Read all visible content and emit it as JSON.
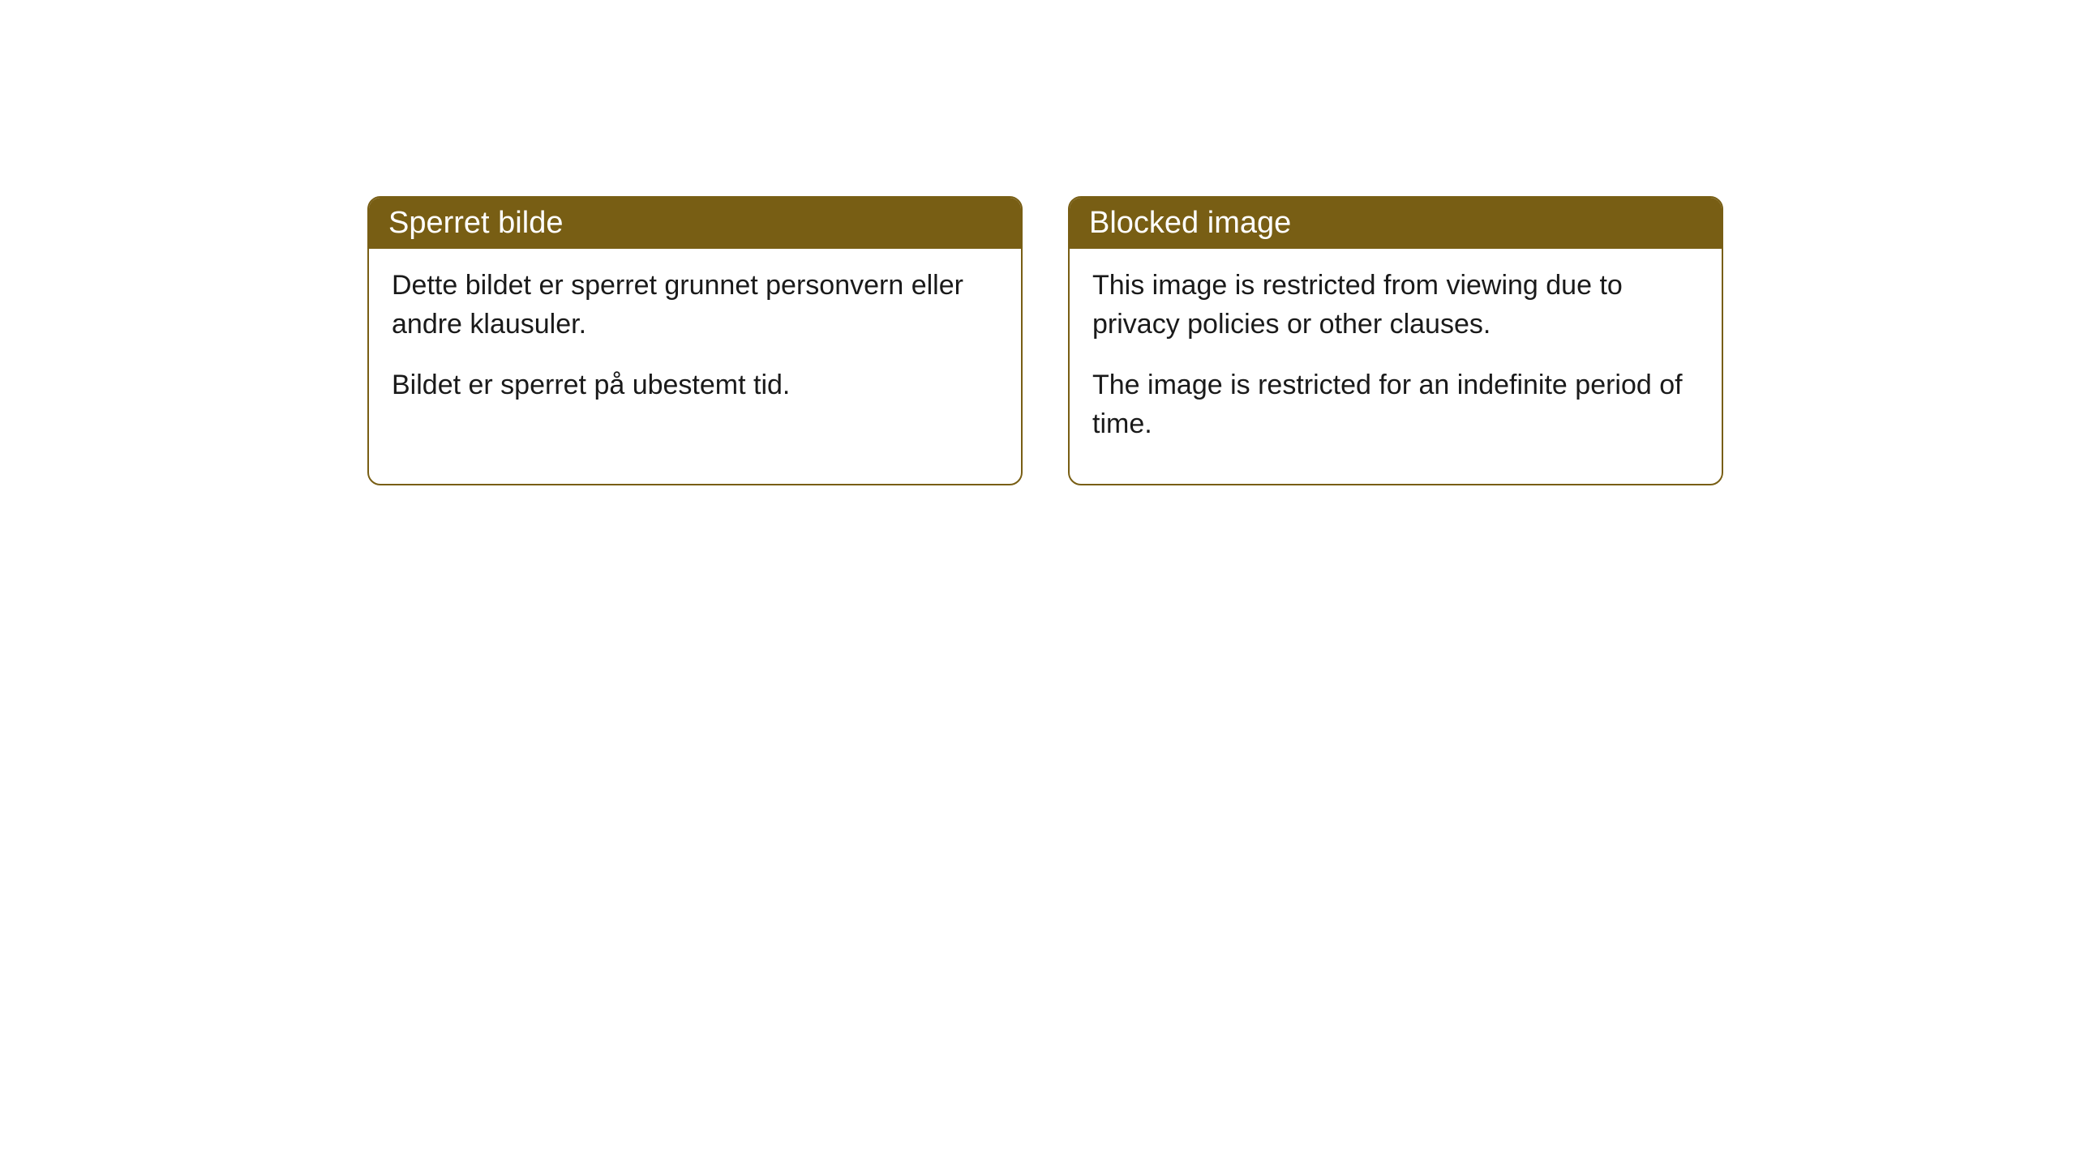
{
  "cards": [
    {
      "title": "Sperret bilde",
      "paragraph1": "Dette bildet er sperret grunnet personvern eller andre klausuler.",
      "paragraph2": "Bildet er sperret på ubestemt tid."
    },
    {
      "title": "Blocked image",
      "paragraph1": "This image is restricted from viewing due to privacy policies or other clauses.",
      "paragraph2": "The image is restricted for an indefinite period of time."
    }
  ],
  "style": {
    "header_bg_color": "#785e14",
    "header_text_color": "#ffffff",
    "border_color": "#785e14",
    "body_bg_color": "#ffffff",
    "body_text_color": "#1a1a1a",
    "border_radius": 16,
    "header_fontsize": 38,
    "body_fontsize": 34
  }
}
